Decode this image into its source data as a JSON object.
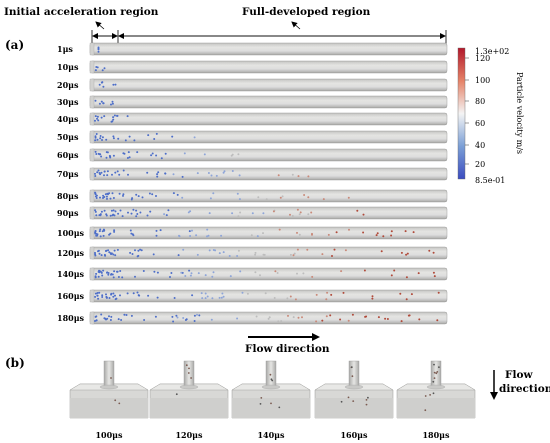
{
  "panel_a_label": "(a)",
  "panel_b_label": "(b)",
  "region_initial": "Initial acceleration region",
  "region_full": "Full-developed region",
  "time_labels": [
    "1μs",
    "10μs",
    "20μs",
    "30μs",
    "40μs",
    "50μs",
    "60μs",
    "70μs",
    "80μs",
    "90μs",
    "100μs",
    "120μs",
    "140μs",
    "160μs",
    "180μs"
  ],
  "flow_direction": "Flow direction",
  "colorbar": {
    "title": "Particle velocity m/s",
    "max_label": "1.3e+02",
    "min_label": "8.5e-01",
    "ticks": [
      "120",
      "100",
      "80",
      "60",
      "40",
      "20"
    ],
    "colors": [
      "#b2182b",
      "#e58267",
      "#f4f4f4",
      "#7b9fd6",
      "#3b4cc0"
    ]
  },
  "panel_b_labels": [
    "100μs",
    "120μs",
    "140μs",
    "160μs",
    "180μs"
  ],
  "panel_b_flow": [
    "Flow",
    "direction"
  ]
}
